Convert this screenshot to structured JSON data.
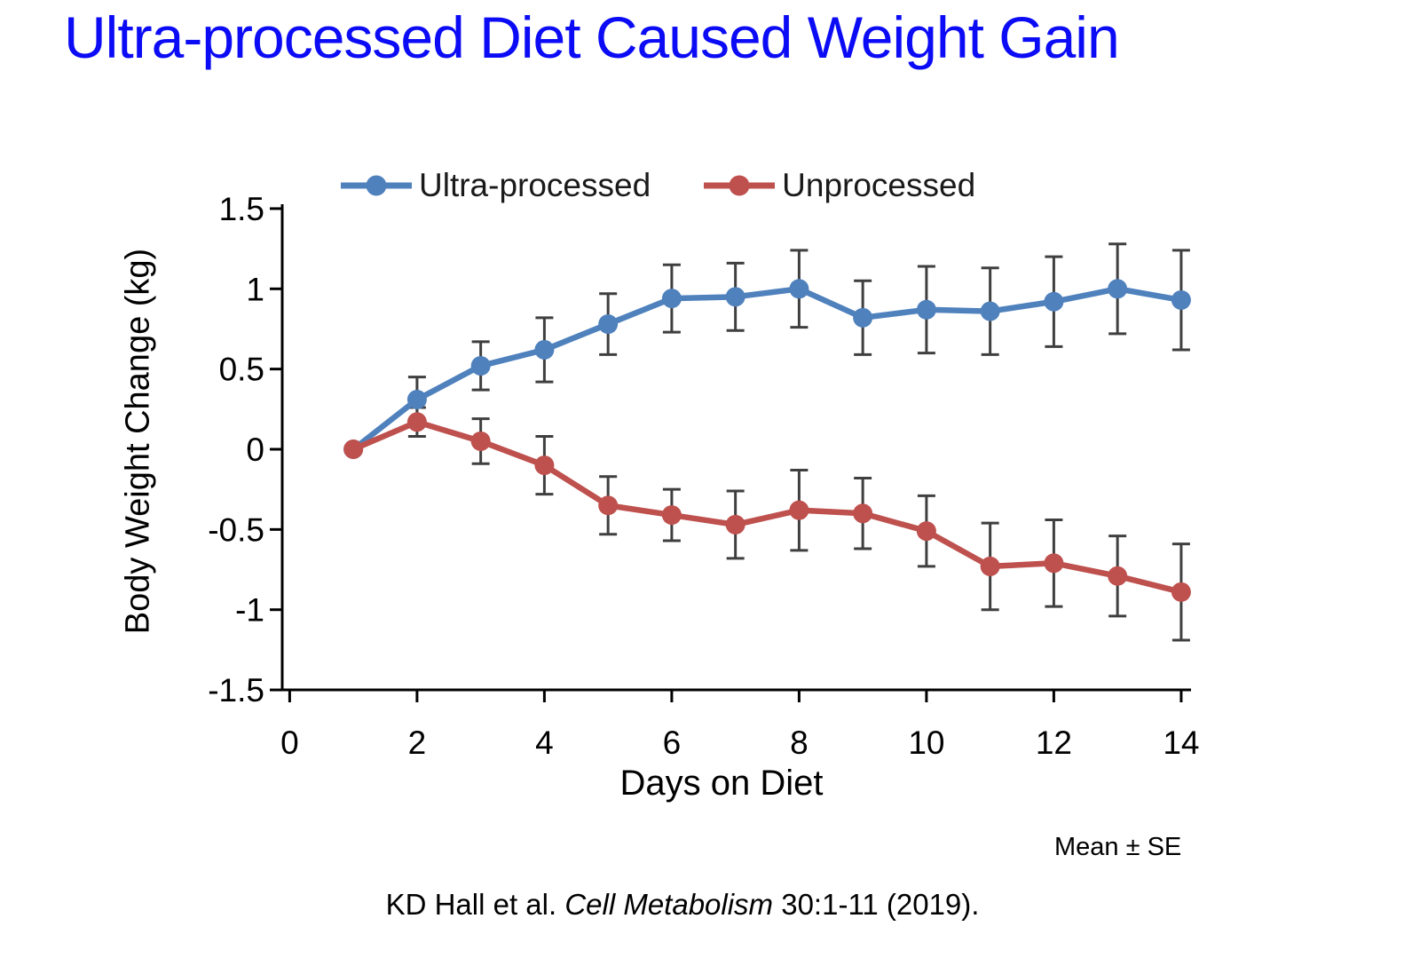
{
  "page": {
    "title": "Ultra-processed Diet Caused Weight Gain",
    "title_color": "#0b0bf5",
    "note": "Mean ± SE",
    "citation": {
      "prefix": "KD Hall et al. ",
      "journal": "Cell Metabolism",
      "suffix": " 30:1-11 (2019)."
    }
  },
  "chart_data": {
    "type": "line",
    "title": "",
    "xlabel": "Days on Diet",
    "ylabel": "Body Weight Change (kg)",
    "xlim": [
      0,
      14
    ],
    "ylim": [
      -1.5,
      1.5
    ],
    "grid": false,
    "legend_position": "top",
    "error_bars": "mean ± SE",
    "error_bar_color": "#3f3f3f",
    "axis_color": "#000000",
    "x_ticks": {
      "values": [
        0,
        2,
        4,
        6,
        8,
        10,
        12,
        14
      ],
      "labels": [
        "0",
        "2",
        "4",
        "6",
        "8",
        "10",
        "12",
        "14"
      ]
    },
    "y_ticks": {
      "values": [
        1.5,
        1,
        0.5,
        0,
        -0.5,
        -1,
        -1.5
      ],
      "labels": [
        "1.5",
        "1",
        "0.5",
        "0",
        "-0.5",
        "-1",
        "-1.5"
      ]
    },
    "x": [
      1,
      2,
      3,
      4,
      5,
      6,
      7,
      8,
      9,
      10,
      11,
      12,
      13,
      14
    ],
    "series": [
      {
        "name": "Ultra-processed",
        "color": "#4f81bd",
        "values": [
          0,
          0.31,
          0.52,
          0.62,
          0.78,
          0.94,
          0.95,
          1.0,
          0.82,
          0.87,
          0.86,
          0.92,
          1.0,
          0.93
        ],
        "se": [
          0,
          0.14,
          0.15,
          0.2,
          0.19,
          0.21,
          0.21,
          0.24,
          0.23,
          0.27,
          0.27,
          0.28,
          0.28,
          0.31
        ]
      },
      {
        "name": "Unprocessed",
        "color": "#be504d",
        "values": [
          0,
          0.17,
          0.05,
          -0.1,
          -0.35,
          -0.41,
          -0.47,
          -0.38,
          -0.4,
          -0.51,
          -0.73,
          -0.71,
          -0.79,
          -0.89
        ],
        "se": [
          0,
          0.09,
          0.14,
          0.18,
          0.18,
          0.16,
          0.21,
          0.25,
          0.22,
          0.22,
          0.27,
          0.27,
          0.25,
          0.3
        ]
      }
    ]
  }
}
